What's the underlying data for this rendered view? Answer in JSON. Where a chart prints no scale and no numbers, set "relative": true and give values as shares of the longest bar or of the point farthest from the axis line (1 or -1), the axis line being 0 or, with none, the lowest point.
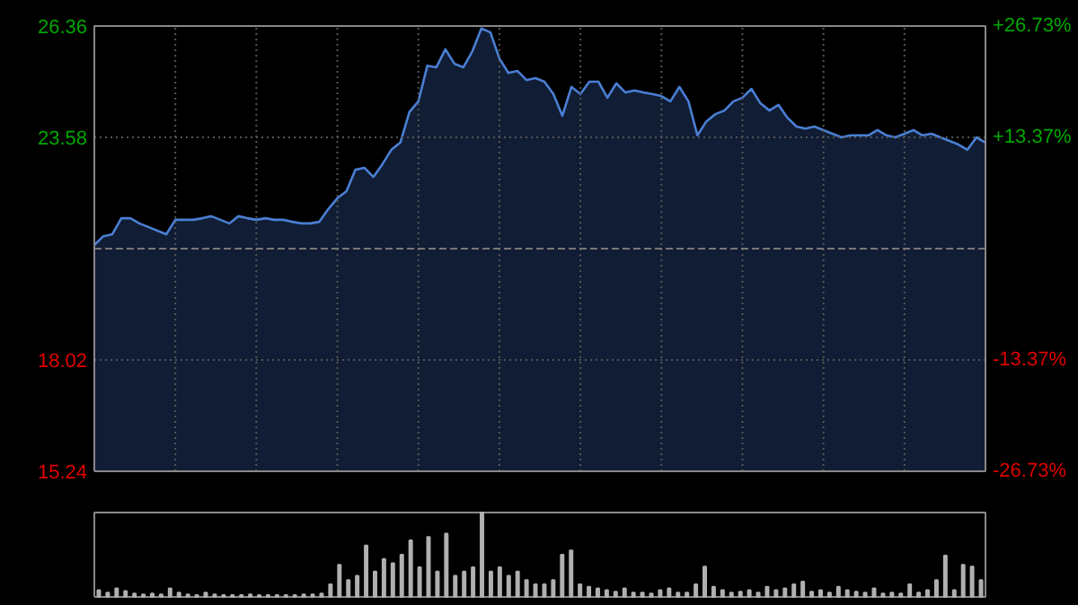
{
  "chart_data": [
    {
      "type": "area",
      "categories": [
        null,
        null,
        null,
        null,
        null,
        null,
        null,
        null,
        null,
        null,
        null,
        null,
        null,
        null,
        null,
        null,
        null,
        null,
        null,
        null,
        null,
        null,
        null,
        null,
        null,
        null,
        null,
        null,
        null,
        null,
        null,
        null,
        null,
        null,
        null,
        null,
        null,
        null,
        null,
        null,
        null,
        null,
        null,
        null,
        null,
        null,
        null,
        null,
        null,
        null,
        null,
        null,
        null,
        null,
        null,
        null,
        null,
        null,
        null,
        null,
        null,
        null,
        null,
        null,
        null,
        null,
        null,
        null,
        null,
        null,
        null,
        null,
        null,
        null,
        null,
        null,
        null,
        null,
        null,
        null,
        null,
        null,
        null,
        null,
        null,
        null,
        null,
        null,
        null,
        null,
        null,
        null,
        null,
        null,
        null,
        null,
        null,
        null,
        null,
        null
      ],
      "series": [
        {
          "color": "#4a7fd4",
          "values": [
            20.89,
            21.11,
            21.16,
            21.56,
            21.56,
            21.43,
            21.34,
            21.25,
            21.16,
            21.52,
            21.52,
            21.52,
            21.56,
            21.61,
            21.52,
            21.43,
            21.61,
            21.56,
            21.52,
            21.56,
            21.52,
            21.52,
            21.47,
            21.43,
            21.43,
            21.47,
            21.79,
            22.06,
            22.23,
            22.77,
            22.82,
            22.59,
            22.91,
            23.27,
            23.45,
            24.21,
            24.48,
            25.37,
            25.33,
            25.78,
            25.42,
            25.33,
            25.73,
            26.3,
            26.2,
            25.55,
            25.19,
            25.24,
            25.01,
            25.06,
            24.97,
            24.66,
            24.12,
            24.84,
            24.66,
            24.97,
            24.97,
            24.57,
            24.93,
            24.7,
            24.75,
            24.7,
            24.66,
            24.61,
            24.48,
            24.84,
            24.48,
            23.63,
            23.98,
            24.16,
            24.25,
            24.48,
            24.57,
            24.79,
            24.43,
            24.25,
            24.39,
            24.07,
            23.85,
            23.8,
            23.85,
            23.76,
            23.67,
            23.58,
            23.63,
            23.63,
            23.63,
            23.76,
            23.63,
            23.58,
            23.67,
            23.76,
            23.63,
            23.67,
            23.58,
            23.49,
            23.4,
            23.27,
            23.58,
            23.45
          ]
        }
      ],
      "ylim": [
        15.24,
        26.36
      ],
      "yticks": [
        15.24,
        18.02,
        23.58,
        26.36
      ],
      "y2lim": [
        -26.73,
        26.73
      ],
      "y2ticks": [
        {
          "value": 26.73,
          "label": "+26.73%"
        },
        {
          "value": 13.37,
          "label": "+13.37%"
        },
        {
          "value": -13.37,
          "label": "-13.37%"
        },
        {
          "value": -26.73,
          "label": "-26.73%"
        }
      ],
      "ref_lines": [
        {
          "axis": "y",
          "value": 20.8,
          "color": "#777777",
          "line_style": "dashed"
        }
      ],
      "grid": true,
      "tick_labels": "y"
    },
    {
      "type": "bar",
      "relative": true,
      "color": "#b0b0b0",
      "categories": [
        null,
        null,
        null,
        null,
        null,
        null,
        null,
        null,
        null,
        null,
        null,
        null,
        null,
        null,
        null,
        null,
        null,
        null,
        null,
        null,
        null,
        null,
        null,
        null,
        null,
        null,
        null,
        null,
        null,
        null,
        null,
        null,
        null,
        null,
        null,
        null,
        null,
        null,
        null,
        null,
        null,
        null,
        null,
        null,
        null,
        null,
        null,
        null,
        null,
        null,
        null,
        null,
        null,
        null,
        null,
        null,
        null,
        null,
        null,
        null,
        null,
        null,
        null,
        null,
        null,
        null,
        null,
        null,
        null,
        null,
        null,
        null,
        null,
        null,
        null,
        null,
        null,
        null,
        null,
        null,
        null,
        null,
        null,
        null,
        null,
        null,
        null,
        null,
        null,
        null,
        null,
        null,
        null,
        null,
        null,
        null,
        null,
        null,
        null,
        null
      ],
      "values": [
        0.08,
        0.05,
        0.1,
        0.07,
        0.04,
        0.03,
        0.04,
        0.03,
        0.1,
        0.05,
        0.03,
        0.02,
        0.05,
        0.03,
        0.02,
        0.02,
        0.02,
        0.03,
        0.02,
        0.02,
        0.02,
        0.02,
        0.02,
        0.03,
        0.03,
        0.04,
        0.15,
        0.38,
        0.2,
        0.25,
        0.61,
        0.3,
        0.45,
        0.4,
        0.5,
        0.67,
        0.35,
        0.71,
        0.3,
        0.75,
        0.25,
        0.3,
        0.35,
        1.0,
        0.3,
        0.35,
        0.25,
        0.3,
        0.2,
        0.15,
        0.15,
        0.2,
        0.5,
        0.55,
        0.15,
        0.12,
        0.1,
        0.08,
        0.06,
        0.1,
        0.05,
        0.05,
        0.04,
        0.08,
        0.1,
        0.05,
        0.05,
        0.15,
        0.36,
        0.12,
        0.08,
        0.05,
        0.06,
        0.08,
        0.05,
        0.12,
        0.08,
        0.1,
        0.15,
        0.18,
        0.06,
        0.08,
        0.05,
        0.12,
        0.08,
        0.06,
        0.05,
        0.1,
        0.04,
        0.05,
        0.04,
        0.15,
        0.05,
        0.08,
        0.2,
        0.49,
        0.08,
        0.38,
        0.36,
        0.2
      ]
    }
  ]
}
